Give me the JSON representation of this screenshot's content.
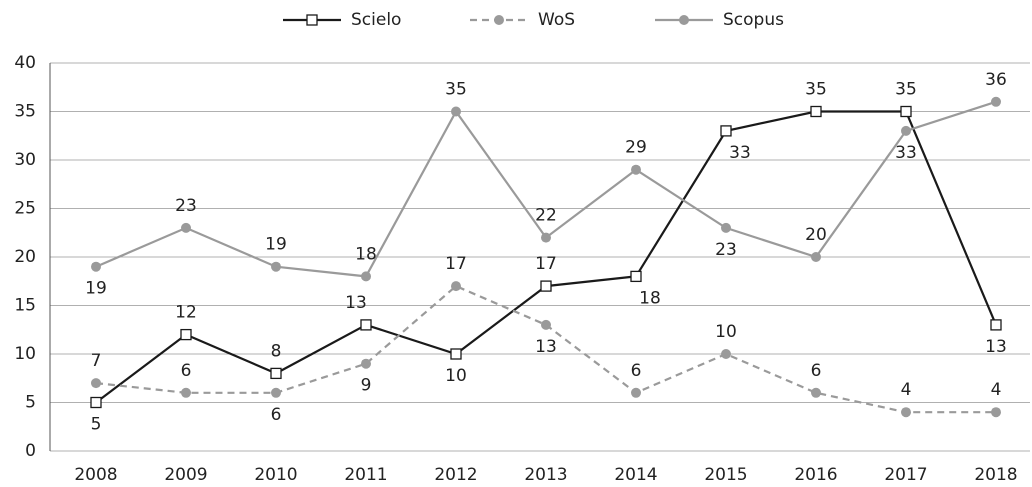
{
  "chart_data": {
    "type": "line",
    "categories": [
      "2008",
      "2009",
      "2010",
      "2011",
      "2012",
      "2013",
      "2014",
      "2015",
      "2016",
      "2017",
      "2018"
    ],
    "series": [
      {
        "name": "Scielo",
        "color": "#1a1a1a",
        "marker": "square",
        "dashed": false,
        "values": [
          5,
          12,
          8,
          13,
          10,
          17,
          18,
          33,
          35,
          35,
          13
        ]
      },
      {
        "name": "WoS",
        "color": "#9a9a9a",
        "marker": "circle",
        "dashed": true,
        "values": [
          7,
          6,
          6,
          9,
          17,
          13,
          6,
          10,
          6,
          4,
          4
        ]
      },
      {
        "name": "Scopus",
        "color": "#9a9a9a",
        "marker": "circle",
        "dashed": false,
        "values": [
          19,
          23,
          19,
          18,
          35,
          22,
          29,
          23,
          20,
          33,
          36
        ]
      }
    ],
    "ylim": [
      0,
      40
    ],
    "yticks": [
      0,
      5,
      10,
      15,
      20,
      25,
      30,
      35,
      40
    ],
    "grid": true,
    "legend": "top"
  }
}
